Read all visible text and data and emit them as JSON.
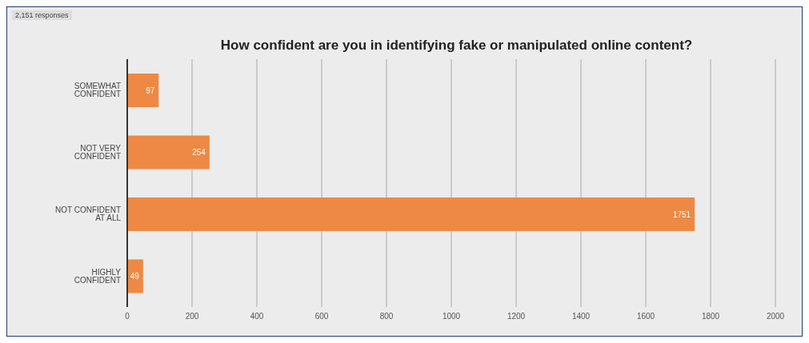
{
  "chart_data": {
    "type": "bar",
    "orientation": "horizontal",
    "title": "How confident are you in identifying fake or manipulated online content?",
    "annotations": [
      "2,151 responses"
    ],
    "categories": [
      "SOMEWHAT CONFIDENT",
      "NOT VERY CONFIDENT",
      "NOT CONFIDENT AT ALL",
      "HIGHLY CONFIDENT"
    ],
    "values": [
      97,
      254,
      1751,
      49
    ],
    "color": "#ed8944",
    "xlim": [
      0,
      2000
    ],
    "xticks": [
      0,
      200,
      400,
      600,
      800,
      1000,
      1200,
      1400,
      1600,
      1800,
      2000
    ],
    "grid": "x",
    "data_labels": true
  }
}
